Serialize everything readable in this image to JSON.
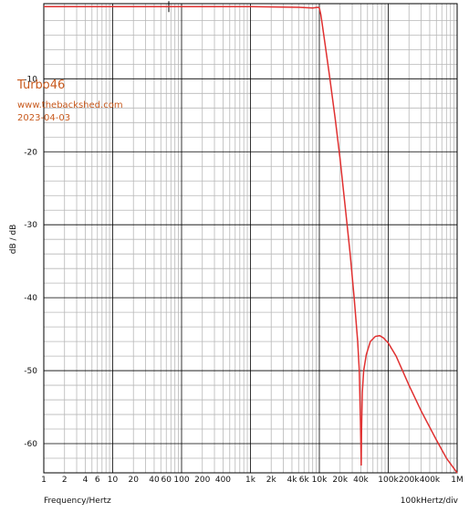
{
  "chart_data": {
    "type": "line",
    "title": "",
    "xlabel": "Frequency/Hertz",
    "ylabel": "dB / dB",
    "scale_label": "100kHertz/div",
    "x_scale": "log",
    "xlim": [
      1,
      1000000
    ],
    "ylim": [
      -64,
      0.3
    ],
    "grid": true,
    "x_ticks": [
      {
        "v": 1,
        "label": "1"
      },
      {
        "v": 2,
        "label": "2"
      },
      {
        "v": 4,
        "label": "4"
      },
      {
        "v": 6,
        "label": "6"
      },
      {
        "v": 10,
        "label": "10"
      },
      {
        "v": 20,
        "label": "20"
      },
      {
        "v": 40,
        "label": "40"
      },
      {
        "v": 60,
        "label": "60"
      },
      {
        "v": 100,
        "label": "100"
      },
      {
        "v": 200,
        "label": "200"
      },
      {
        "v": 400,
        "label": "400"
      },
      {
        "v": 1000,
        "label": "1k"
      },
      {
        "v": 2000,
        "label": "2k"
      },
      {
        "v": 4000,
        "label": "4k"
      },
      {
        "v": 6000,
        "label": "6k"
      },
      {
        "v": 10000,
        "label": "10k"
      },
      {
        "v": 20000,
        "label": "20k"
      },
      {
        "v": 40000,
        "label": "40k"
      },
      {
        "v": 100000,
        "label": "100k"
      },
      {
        "v": 200000,
        "label": "200k"
      },
      {
        "v": 400000,
        "label": "400k"
      },
      {
        "v": 1000000,
        "label": "1M"
      }
    ],
    "y_ticks": [
      {
        "v": -10,
        "label": "-10"
      },
      {
        "v": -20,
        "label": "-20"
      },
      {
        "v": -30,
        "label": "-30"
      },
      {
        "v": -40,
        "label": "-40"
      },
      {
        "v": -50,
        "label": "-50"
      },
      {
        "v": -60,
        "label": "-60"
      }
    ],
    "series": [
      {
        "color": "#e03030",
        "x": [
          1,
          10,
          100,
          1000,
          5000,
          8000,
          9500,
          10000,
          10500,
          11000,
          12000,
          14000,
          17000,
          20000,
          24000,
          28000,
          32000,
          36000,
          38000,
          39500,
          40500,
          41000,
          42000,
          44000,
          48000,
          55000,
          65000,
          75000,
          85000,
          100000,
          130000,
          200000,
          300000,
          500000,
          700000,
          1000000
        ],
        "y": [
          -0.1,
          -0.1,
          -0.1,
          -0.1,
          -0.2,
          -0.3,
          -0.2,
          -0.3,
          -1.2,
          -2.5,
          -5,
          -9.5,
          -15.5,
          -21,
          -28,
          -34,
          -40,
          -46,
          -50,
          -57,
          -63,
          -58,
          -53,
          -50,
          -47.8,
          -46,
          -45.3,
          -45.2,
          -45.5,
          -46.2,
          -48,
          -52,
          -55.5,
          -59.5,
          -62,
          -64
        ]
      }
    ]
  },
  "annotations": {
    "title": "Turbo46",
    "site": "www.thebackshed.com",
    "date": "2023-04-03"
  },
  "colors": {
    "grid_major": "#000000",
    "grid_minor": "#b8b8b8",
    "trace": "#e03030",
    "annotation": "#c85a1e"
  }
}
